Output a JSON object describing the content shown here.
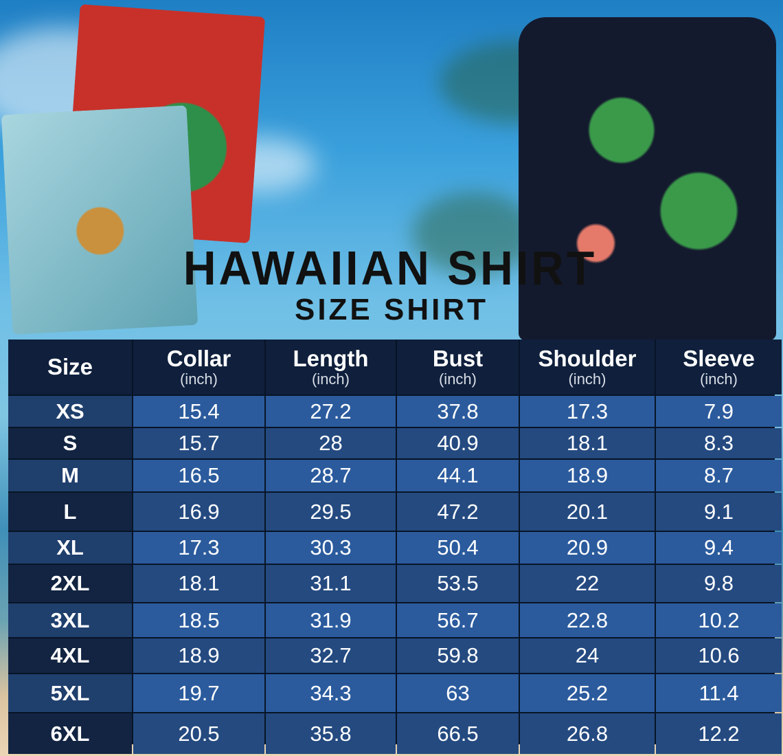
{
  "title": "HAWAIIAN SHIRT",
  "subtitle": "SIZE SHIRT",
  "colors": {
    "header_bg": "#0f1f3c",
    "row_light": "#2b5b9d",
    "row_dark": "#244a80",
    "text": "#ffffff"
  },
  "table": {
    "headers": [
      {
        "name": "Size",
        "unit": ""
      },
      {
        "name": "Collar",
        "unit": "(inch)"
      },
      {
        "name": "Length",
        "unit": "(inch)"
      },
      {
        "name": "Bust",
        "unit": "(inch)"
      },
      {
        "name": "Shoulder",
        "unit": "(inch)"
      },
      {
        "name": "Sleeve",
        "unit": "(inch)"
      }
    ],
    "rows": [
      [
        "XS",
        "15.4",
        "27.2",
        "37.8",
        "17.3",
        "7.9"
      ],
      [
        "S",
        "15.7",
        "28",
        "40.9",
        "18.1",
        "8.3"
      ],
      [
        "M",
        "16.5",
        "28.7",
        "44.1",
        "18.9",
        "8.7"
      ],
      [
        "L",
        "16.9",
        "29.5",
        "47.2",
        "20.1",
        "9.1"
      ],
      [
        "XL",
        "17.3",
        "30.3",
        "50.4",
        "20.9",
        "9.4"
      ],
      [
        "2XL",
        "18.1",
        "31.1",
        "53.5",
        "22",
        "9.8"
      ],
      [
        "3XL",
        "18.5",
        "31.9",
        "56.7",
        "22.8",
        "10.2"
      ],
      [
        "4XL",
        "18.9",
        "32.7",
        "59.8",
        "24",
        "10.6"
      ],
      [
        "5XL",
        "19.7",
        "34.3",
        "63",
        "25.2",
        "11.4"
      ],
      [
        "6XL",
        "20.5",
        "35.8",
        "66.5",
        "26.8",
        "12.2"
      ]
    ]
  }
}
